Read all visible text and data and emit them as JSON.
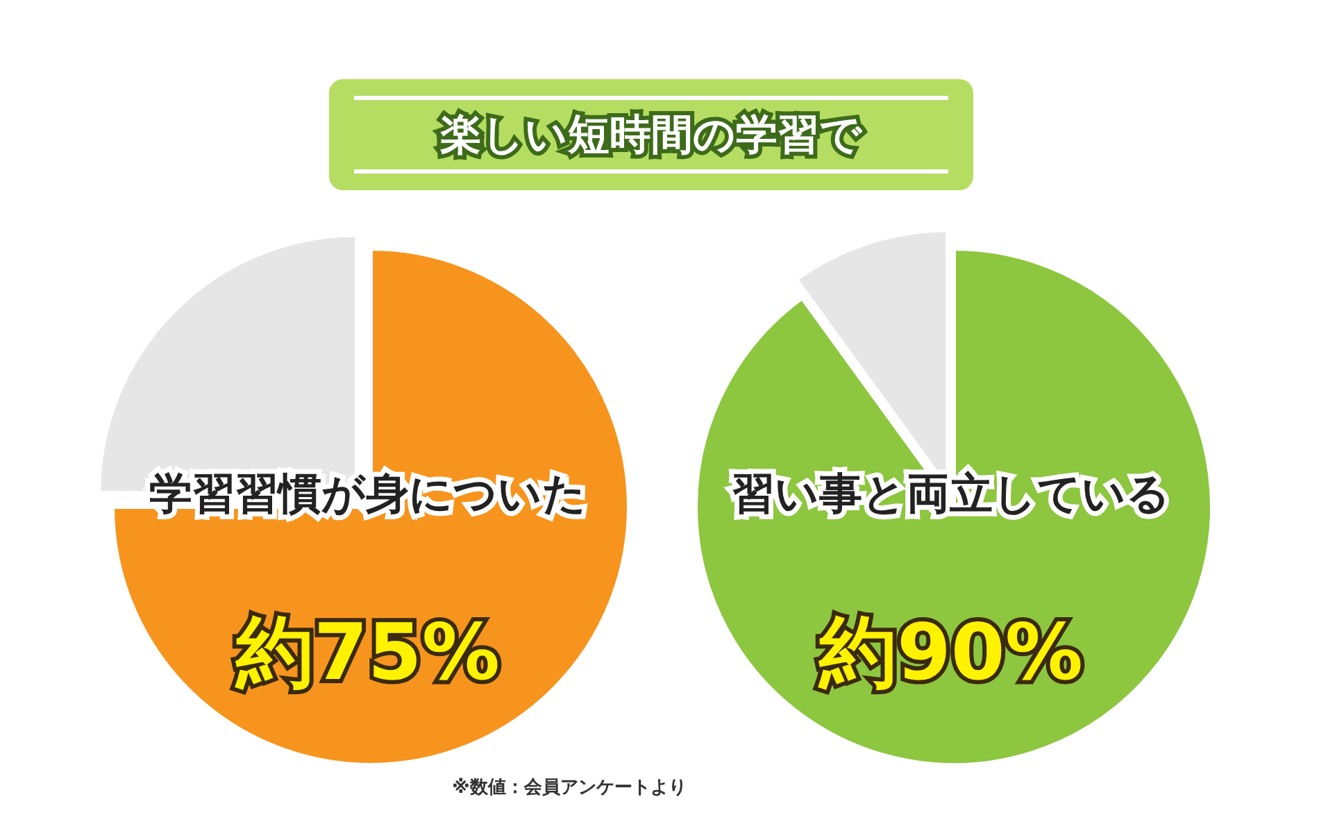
{
  "chart_data": [
    {
      "type": "pie",
      "title": "楽しい短時間の学習で",
      "subtitle": "学習習慣が身についた",
      "categories": [
        null,
        null
      ],
      "values": [
        75,
        25
      ],
      "colors": [
        "#f7941d",
        "#e6e6e6"
      ],
      "value_labels": [
        "約75%",
        null
      ],
      "legend": false
    },
    {
      "type": "pie",
      "subtitle": "習い事と両立している",
      "categories": [
        null,
        null
      ],
      "values": [
        90,
        10
      ],
      "colors": [
        "#8dc63f",
        "#e6e6e6"
      ],
      "value_labels": [
        "約90%",
        null
      ],
      "legend": false,
      "annotations": [
        "※数値：会員アンケートより"
      ]
    }
  ]
}
